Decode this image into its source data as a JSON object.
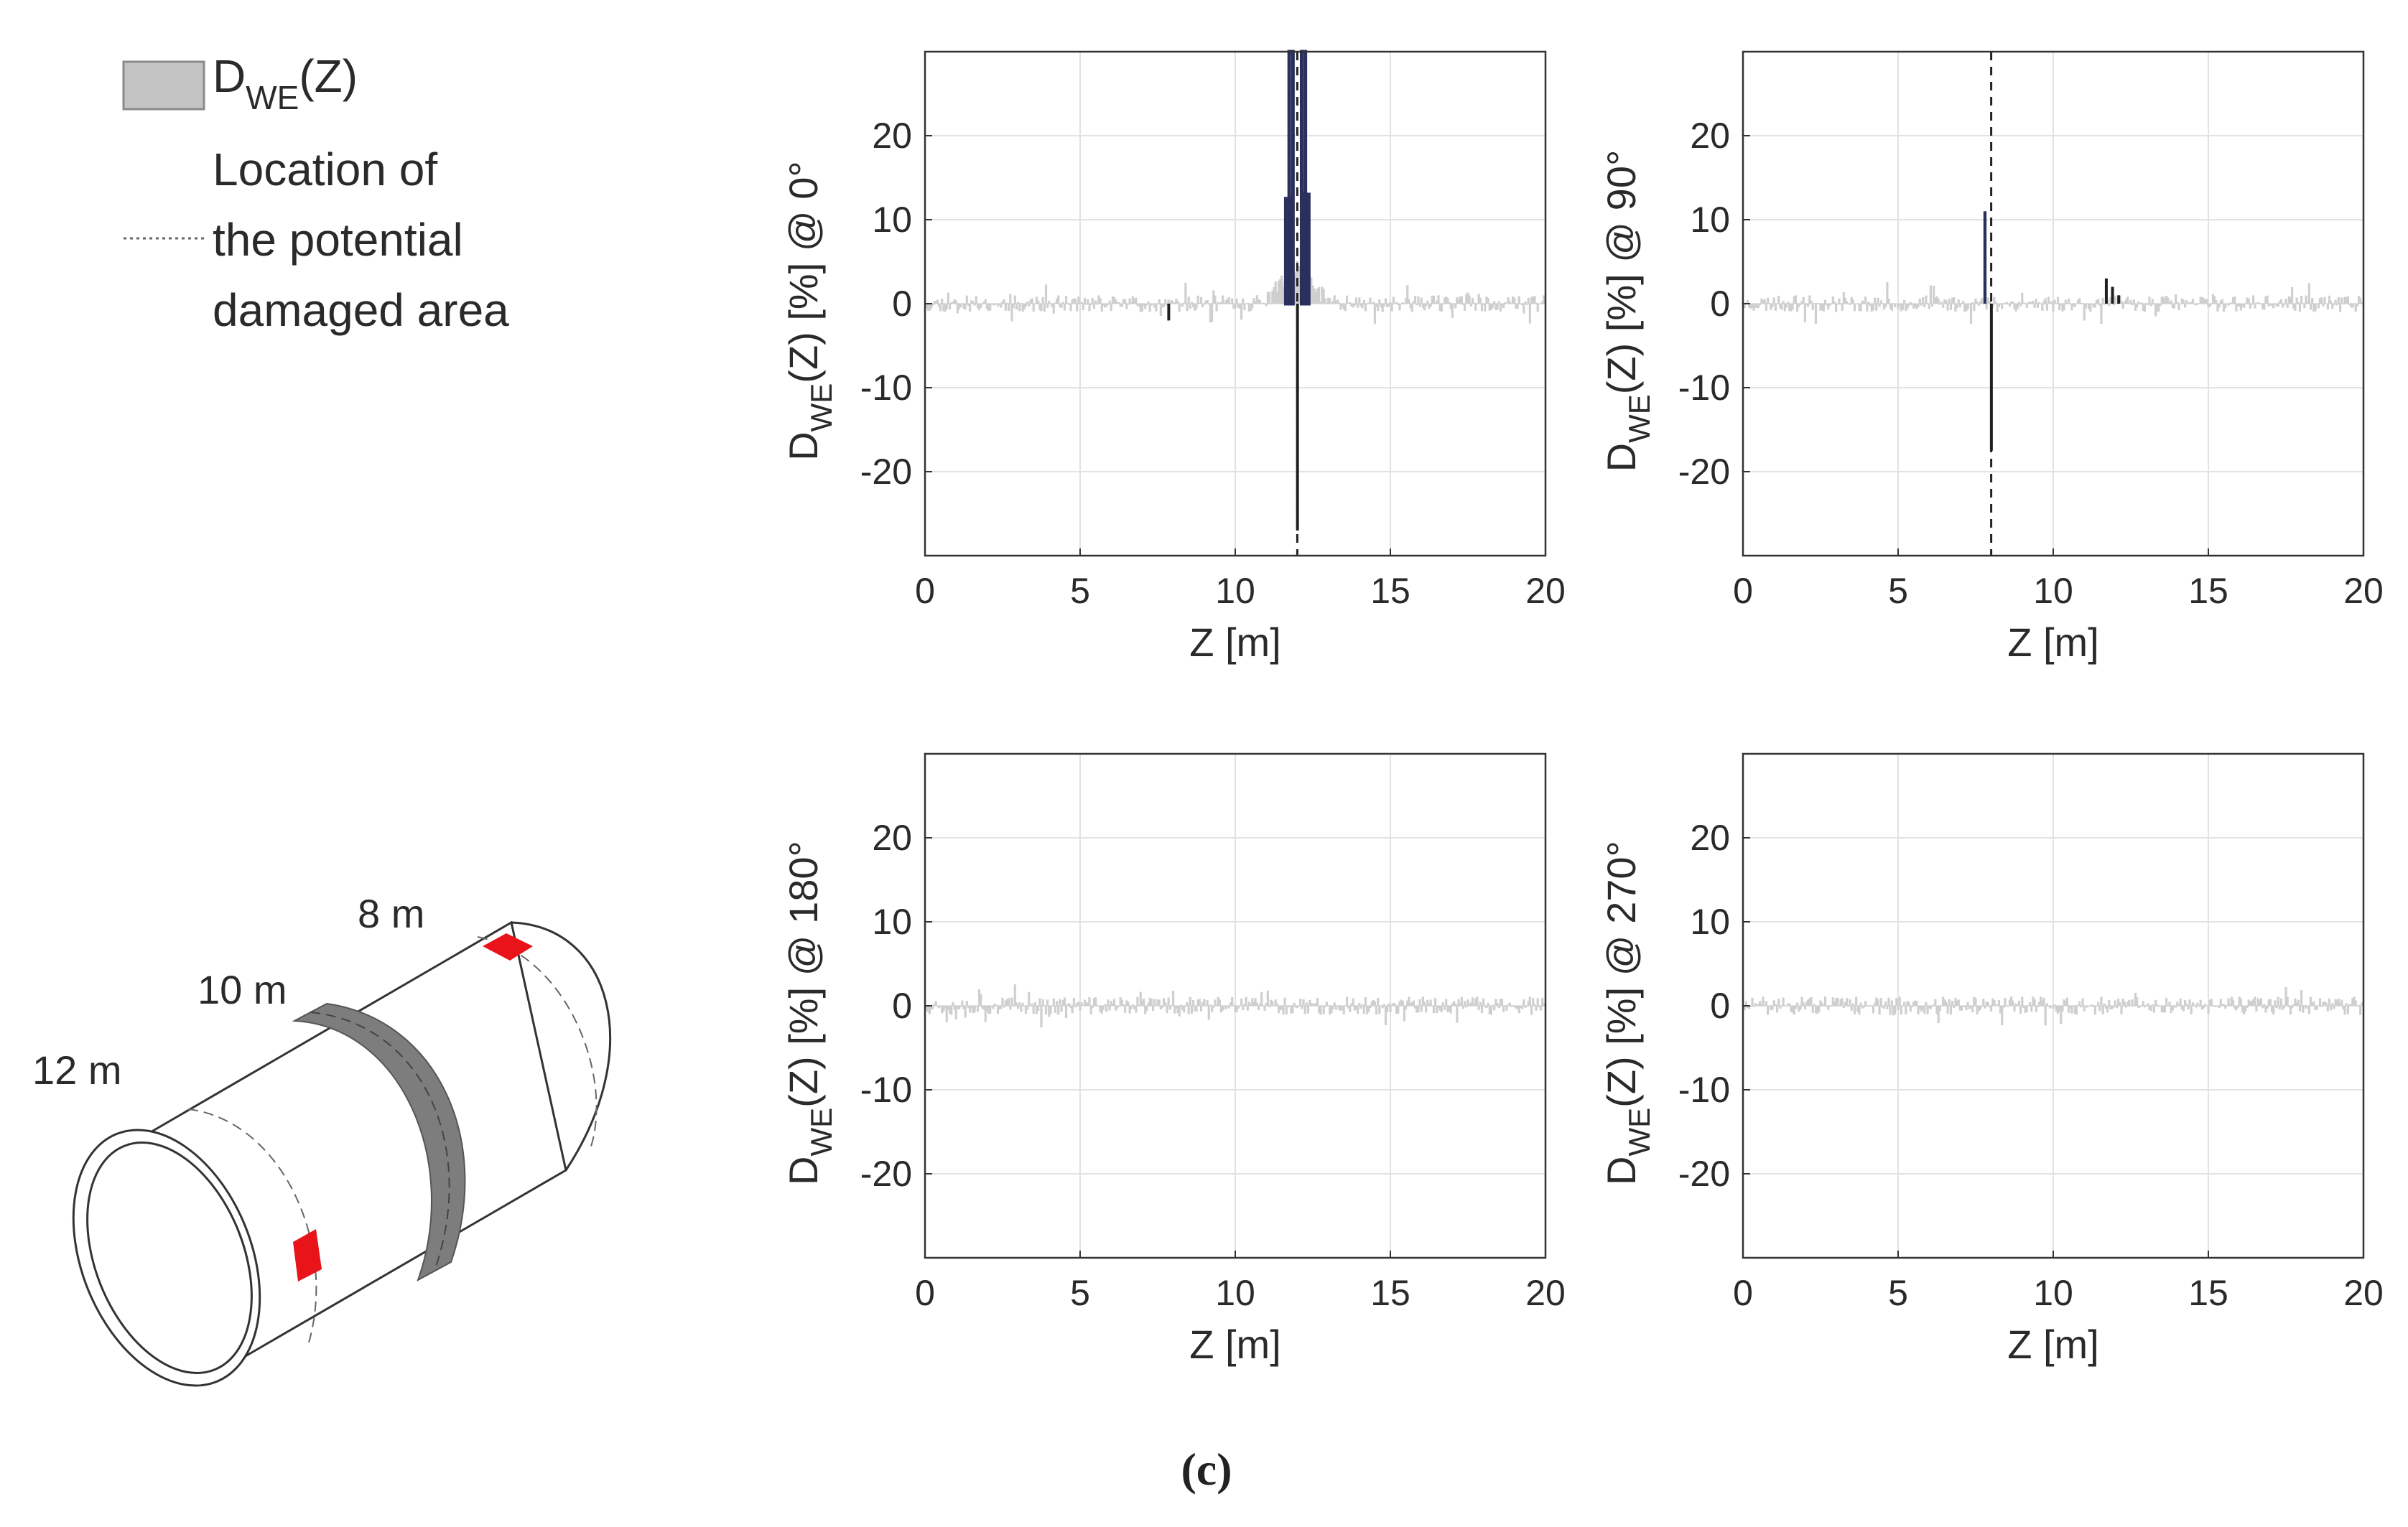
{
  "figure": {
    "panel_label": "(c)"
  },
  "legend": {
    "swatch_label_main": "D",
    "swatch_label_sub": "WE",
    "swatch_label_tail": "(Z)",
    "swatch_color": "#c4c4c4",
    "line_label_lines": [
      "Location of",
      "the potential",
      "damaged area"
    ]
  },
  "pipe_sketch": {
    "labels": [
      "8 m",
      "10 m",
      "12 m"
    ],
    "damage_color": "#e8141a",
    "ring_color": "#7d7d7d"
  },
  "colors": {
    "noise": "#cfcfcf",
    "bar_dark": "#2a2f5c",
    "bar_black": "#202020",
    "grid": "#e2e2e2",
    "axis": "#333333"
  },
  "chart_data": [
    {
      "type": "bar",
      "title": "",
      "xlabel": "Z [m]",
      "ylabel_main": "D",
      "ylabel_sub": "WE",
      "ylabel_tail": "(Z) [%] @ 0°",
      "xlim": [
        0,
        20
      ],
      "ylim": [
        -30,
        30
      ],
      "xticks": [
        "0",
        "5",
        "10",
        "15",
        "20"
      ],
      "yticks": [
        "-20",
        "-10",
        "0",
        "10",
        "20"
      ],
      "grid": true,
      "damage_location_z": 12,
      "noise": {
        "amplitude": 1.0,
        "seed": 11,
        "bumps": [
          {
            "z": 12,
            "height": 5,
            "width": 0.7
          }
        ]
      },
      "bars": [
        {
          "z": 11.8,
          "value": 30,
          "width": 0.12,
          "color": "dark"
        },
        {
          "z": 12.2,
          "value": 30,
          "width": 0.12,
          "color": "dark"
        },
        {
          "z": 11.7,
          "value": 12.5,
          "width": 0.14,
          "color": "dark"
        },
        {
          "z": 12.3,
          "value": 13,
          "width": 0.14,
          "color": "dark"
        },
        {
          "z": 12.0,
          "value": -27,
          "width": 0.08,
          "color": "black"
        },
        {
          "z": 7.85,
          "value": -2,
          "width": 0.08,
          "color": "black"
        }
      ]
    },
    {
      "type": "bar",
      "title": "",
      "xlabel": "Z [m]",
      "ylabel_main": "D",
      "ylabel_sub": "WE",
      "ylabel_tail": "(Z) [%] @ 90°",
      "xlim": [
        0,
        20
      ],
      "ylim": [
        -30,
        30
      ],
      "xticks": [
        "0",
        "5",
        "10",
        "15",
        "20"
      ],
      "yticks": [
        "-20",
        "-10",
        "0",
        "10",
        "20"
      ],
      "grid": true,
      "damage_location_z": 8,
      "noise": {
        "amplitude": 1.0,
        "seed": 23,
        "bumps": []
      },
      "bars": [
        {
          "z": 7.8,
          "value": 11,
          "width": 0.1,
          "color": "dark"
        },
        {
          "z": 8.0,
          "value": -17.5,
          "width": 0.08,
          "color": "black"
        },
        {
          "z": 11.7,
          "value": 3,
          "width": 0.07,
          "color": "black"
        },
        {
          "z": 11.9,
          "value": 2,
          "width": 0.07,
          "color": "black"
        },
        {
          "z": 12.1,
          "value": 1,
          "width": 0.07,
          "color": "black"
        }
      ]
    },
    {
      "type": "bar",
      "title": "",
      "xlabel": "Z [m]",
      "ylabel_main": "D",
      "ylabel_sub": "WE",
      "ylabel_tail": "(Z) [%] @ 180°",
      "xlim": [
        0,
        20
      ],
      "ylim": [
        -30,
        30
      ],
      "xticks": [
        "0",
        "5",
        "10",
        "15",
        "20"
      ],
      "yticks": [
        "-20",
        "-10",
        "0",
        "10",
        "20"
      ],
      "grid": true,
      "damage_location_z": null,
      "noise": {
        "amplitude": 1.1,
        "seed": 37,
        "bumps": []
      },
      "bars": []
    },
    {
      "type": "bar",
      "title": "",
      "xlabel": "Z [m]",
      "ylabel_main": "D",
      "ylabel_sub": "WE",
      "ylabel_tail": "(Z) [%] @ 270°",
      "xlim": [
        0,
        20
      ],
      "ylim": [
        -30,
        30
      ],
      "xticks": [
        "0",
        "5",
        "10",
        "15",
        "20"
      ],
      "yticks": [
        "-20",
        "-10",
        "0",
        "10",
        "20"
      ],
      "grid": true,
      "damage_location_z": null,
      "noise": {
        "amplitude": 1.1,
        "seed": 51,
        "bumps": []
      },
      "bars": []
    }
  ]
}
